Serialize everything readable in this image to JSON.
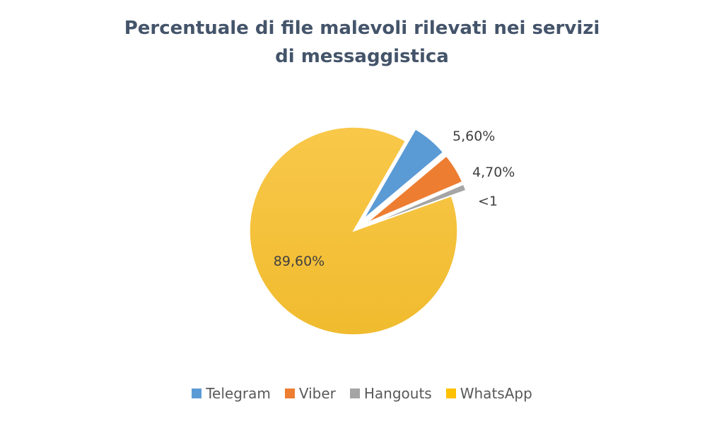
{
  "chart_data": {
    "type": "pie",
    "title": "Percentuale di file malevoli rilevati nei servizi di messaggistica",
    "legend_position": "bottom",
    "start_angle_deg": 30,
    "exploded": [
      "Telegram",
      "Viber",
      "Hangouts"
    ],
    "slices": [
      {
        "name": "Telegram",
        "value": 5.6,
        "label": "5,60%",
        "color": "#5b9bd5"
      },
      {
        "name": "Viber",
        "value": 4.7,
        "label": "4,70%",
        "color": "#ed7d31"
      },
      {
        "name": "Hangouts",
        "value": 1.0,
        "label": "<1",
        "color": "#a5a5a5"
      },
      {
        "name": "WhatsApp",
        "value": 89.6,
        "label": "89,60%",
        "color": "#ffc000"
      }
    ]
  }
}
